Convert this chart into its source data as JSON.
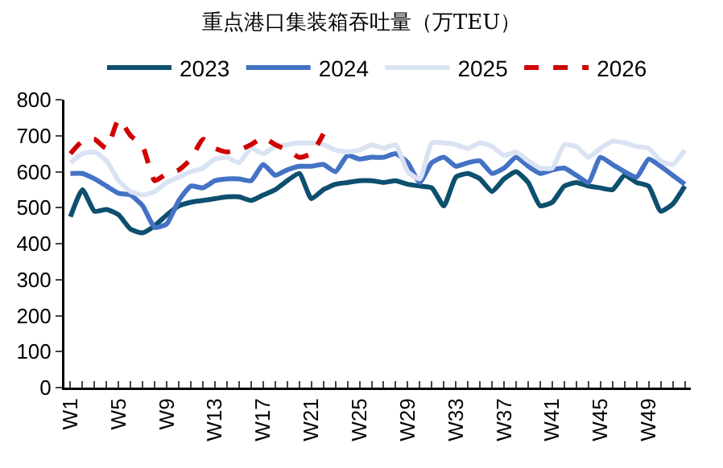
{
  "chart_data": {
    "type": "line",
    "title": "重点港口集装箱吞吐量（万TEU）",
    "categories": [
      "W1",
      null,
      null,
      null,
      "W5",
      null,
      null,
      null,
      "W9",
      null,
      null,
      null,
      "W13",
      null,
      null,
      null,
      "W17",
      null,
      null,
      null,
      "W21",
      null,
      null,
      null,
      "W25",
      null,
      null,
      null,
      "W29",
      null,
      null,
      null,
      "W33",
      null,
      null,
      null,
      "W37",
      null,
      null,
      null,
      "W41",
      null,
      null,
      null,
      "W45",
      null,
      null,
      null,
      "W49",
      null,
      null,
      null
    ],
    "series": [
      {
        "name": "2023",
        "color": "#0d4f6e",
        "values": [
          475,
          550,
          490,
          495,
          480,
          440,
          430,
          450,
          480,
          505,
          515,
          520,
          525,
          530,
          530,
          520,
          535,
          550,
          575,
          595,
          525,
          550,
          565,
          570,
          575,
          575,
          570,
          575,
          565,
          560,
          555,
          505,
          585,
          595,
          580,
          545,
          580,
          600,
          570,
          505,
          515,
          560,
          570,
          560,
          555,
          550,
          590,
          570,
          560,
          490,
          510,
          560
        ]
      },
      {
        "name": "2024",
        "color": "#4472c4",
        "values": [
          595,
          595,
          580,
          560,
          540,
          535,
          505,
          445,
          455,
          520,
          560,
          555,
          575,
          580,
          580,
          575,
          620,
          590,
          605,
          615,
          615,
          620,
          600,
          645,
          635,
          640,
          640,
          650,
          625,
          570,
          625,
          640,
          615,
          625,
          630,
          595,
          610,
          640,
          615,
          595,
          605,
          610,
          590,
          570,
          640,
          620,
          600,
          585,
          635,
          615,
          590,
          565
        ]
      },
      {
        "name": "2025",
        "color": "#dae3f3",
        "values": [
          625,
          650,
          655,
          630,
          575,
          545,
          535,
          545,
          570,
          585,
          600,
          610,
          635,
          640,
          625,
          665,
          650,
          670,
          675,
          680,
          680,
          675,
          660,
          655,
          660,
          675,
          665,
          675,
          600,
          580,
          680,
          680,
          675,
          665,
          680,
          670,
          645,
          655,
          630,
          610,
          610,
          675,
          670,
          640,
          665,
          685,
          680,
          670,
          665,
          630,
          620,
          660
        ]
      },
      {
        "name": "2026",
        "color": "#d00000",
        "line_style": "dashed",
        "values": [
          650,
          685,
          690,
          665,
          745,
          700,
          670,
          575,
          595,
          605,
          635,
          690,
          665,
          655,
          660,
          675,
          695,
          675,
          660,
          640,
          650,
          705,
          null,
          null,
          null,
          null,
          null,
          null,
          null,
          null,
          null,
          null,
          null,
          null,
          null,
          null,
          null,
          null,
          null,
          null,
          null,
          null,
          null,
          null,
          null,
          null,
          null,
          null,
          null,
          null,
          null,
          null
        ]
      }
    ],
    "ylim": [
      0,
      800
    ],
    "yticks": [
      0,
      100,
      200,
      300,
      400,
      500,
      600,
      700,
      800
    ],
    "grid": false,
    "legend": "top"
  }
}
